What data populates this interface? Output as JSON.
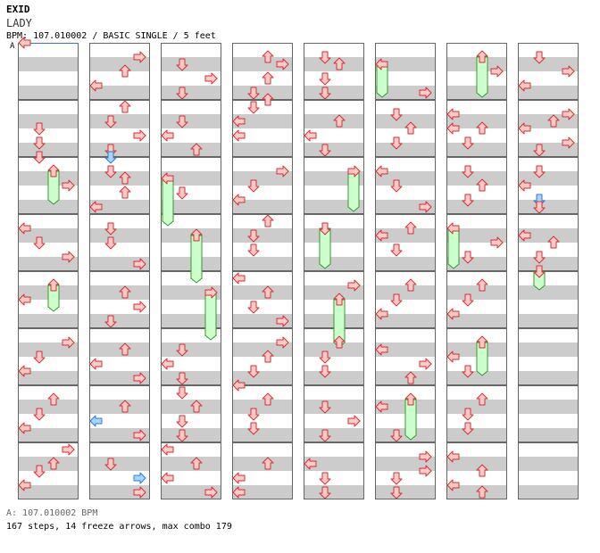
{
  "header": {
    "artist": "EXID",
    "title": "LADY",
    "meta": "BPM: 107.010002 / BASIC SINGLE / 5 feet",
    "bpm_marker": "A"
  },
  "footer": {
    "bpm_legend": "A: 107.010002 BPM",
    "summary": "167 steps, 14 freeze arrows, max combo 179"
  },
  "colors": {
    "arrow_fill": "#ffc8c8",
    "arrow_stroke": "#cc3333",
    "shock_fill": "#a6d6ff",
    "shock_stroke": "#3377cc",
    "freeze_fill": "#ccffcc",
    "freeze_stroke": "#339933",
    "stripe": "#cccccc",
    "border": "#666666"
  },
  "steps": [
    {
      "c": 0,
      "r": 0,
      "b": 0,
      "d": "L"
    },
    {
      "c": 0,
      "r": 1,
      "b": 4,
      "d": "D"
    },
    {
      "c": 0,
      "r": 1,
      "b": 6,
      "d": "D"
    },
    {
      "c": 0,
      "r": 1,
      "b": 8,
      "d": "D"
    },
    {
      "c": 0,
      "r": 2,
      "b": 2,
      "d": "U",
      "f": 4
    },
    {
      "c": 0,
      "r": 2,
      "b": 4,
      "d": "R"
    },
    {
      "c": 0,
      "r": 3,
      "b": 2,
      "d": "L"
    },
    {
      "c": 0,
      "r": 3,
      "b": 4,
      "d": "D"
    },
    {
      "c": 0,
      "r": 3,
      "b": 6,
      "d": "R"
    },
    {
      "c": 0,
      "r": 4,
      "b": 2,
      "d": "U",
      "f": 3
    },
    {
      "c": 0,
      "r": 4,
      "b": 4,
      "d": "L"
    },
    {
      "c": 0,
      "r": 5,
      "b": 2,
      "d": "R"
    },
    {
      "c": 0,
      "r": 5,
      "b": 4,
      "d": "D"
    },
    {
      "c": 0,
      "r": 5,
      "b": 6,
      "d": "L"
    },
    {
      "c": 0,
      "r": 6,
      "b": 2,
      "d": "U"
    },
    {
      "c": 0,
      "r": 6,
      "b": 4,
      "d": "D"
    },
    {
      "c": 0,
      "r": 6,
      "b": 6,
      "d": "L"
    },
    {
      "c": 0,
      "r": 7,
      "b": 1,
      "d": "R"
    },
    {
      "c": 0,
      "r": 7,
      "b": 3,
      "d": "U"
    },
    {
      "c": 0,
      "r": 7,
      "b": 4,
      "d": "D"
    },
    {
      "c": 0,
      "r": 7,
      "b": 6,
      "d": "L"
    },
    {
      "c": 1,
      "r": 0,
      "b": 2,
      "d": "R"
    },
    {
      "c": 1,
      "r": 0,
      "b": 4,
      "d": "U"
    },
    {
      "c": 1,
      "r": 0,
      "b": 6,
      "d": "L"
    },
    {
      "c": 1,
      "r": 1,
      "b": 1,
      "d": "U"
    },
    {
      "c": 1,
      "r": 1,
      "b": 3,
      "d": "D"
    },
    {
      "c": 1,
      "r": 1,
      "b": 5,
      "d": "R"
    },
    {
      "c": 1,
      "r": 1,
      "b": 7,
      "d": "D"
    },
    {
      "c": 1,
      "r": 1,
      "b": 8,
      "d": "D",
      "s": 1
    },
    {
      "c": 1,
      "r": 2,
      "b": 2,
      "d": "D"
    },
    {
      "c": 1,
      "r": 2,
      "b": 3,
      "d": "U"
    },
    {
      "c": 1,
      "r": 2,
      "b": 5,
      "d": "U"
    },
    {
      "c": 1,
      "r": 2,
      "b": 7,
      "d": "L"
    },
    {
      "c": 1,
      "r": 3,
      "b": 2,
      "d": "D"
    },
    {
      "c": 1,
      "r": 3,
      "b": 4,
      "d": "D"
    },
    {
      "c": 1,
      "r": 3,
      "b": 7,
      "d": "R"
    },
    {
      "c": 1,
      "r": 4,
      "b": 3,
      "d": "U"
    },
    {
      "c": 1,
      "r": 4,
      "b": 5,
      "d": "R"
    },
    {
      "c": 1,
      "r": 4,
      "b": 7,
      "d": "D"
    },
    {
      "c": 1,
      "r": 5,
      "b": 3,
      "d": "U"
    },
    {
      "c": 1,
      "r": 5,
      "b": 5,
      "d": "L"
    },
    {
      "c": 1,
      "r": 5,
      "b": 7,
      "d": "R"
    },
    {
      "c": 1,
      "r": 6,
      "b": 3,
      "d": "U"
    },
    {
      "c": 1,
      "r": 6,
      "b": 5,
      "d": "L",
      "s": 1
    },
    {
      "c": 1,
      "r": 6,
      "b": 7,
      "d": "R"
    },
    {
      "c": 1,
      "r": 7,
      "b": 3,
      "d": "D"
    },
    {
      "c": 1,
      "r": 7,
      "b": 5,
      "d": "R",
      "s": 1
    },
    {
      "c": 1,
      "r": 7,
      "b": 7,
      "d": "R"
    },
    {
      "c": 2,
      "r": 0,
      "b": 3,
      "d": "D"
    },
    {
      "c": 2,
      "r": 0,
      "b": 5,
      "d": "R"
    },
    {
      "c": 2,
      "r": 0,
      "b": 7,
      "d": "D"
    },
    {
      "c": 2,
      "r": 1,
      "b": 3,
      "d": "D"
    },
    {
      "c": 2,
      "r": 1,
      "b": 5,
      "d": "L"
    },
    {
      "c": 2,
      "r": 1,
      "b": 7,
      "d": "U"
    },
    {
      "c": 2,
      "r": 2,
      "b": 3,
      "d": "L",
      "f": 6
    },
    {
      "c": 2,
      "r": 2,
      "b": 5,
      "d": "D"
    },
    {
      "c": 2,
      "r": 3,
      "b": 3,
      "d": "U",
      "f": 6
    },
    {
      "c": 2,
      "r": 4,
      "b": 3,
      "d": "R",
      "f": 6
    },
    {
      "c": 2,
      "r": 5,
      "b": 3,
      "d": "D"
    },
    {
      "c": 2,
      "r": 5,
      "b": 5,
      "d": "L"
    },
    {
      "c": 2,
      "r": 5,
      "b": 7,
      "d": "D"
    },
    {
      "c": 2,
      "r": 6,
      "b": 1,
      "d": "D"
    },
    {
      "c": 2,
      "r": 6,
      "b": 3,
      "d": "U"
    },
    {
      "c": 2,
      "r": 6,
      "b": 5,
      "d": "D"
    },
    {
      "c": 2,
      "r": 6,
      "b": 7,
      "d": "D"
    },
    {
      "c": 2,
      "r": 7,
      "b": 1,
      "d": "L"
    },
    {
      "c": 2,
      "r": 7,
      "b": 3,
      "d": "U"
    },
    {
      "c": 2,
      "r": 7,
      "b": 5,
      "d": "L"
    },
    {
      "c": 2,
      "r": 7,
      "b": 7,
      "d": "R"
    },
    {
      "c": 3,
      "r": 0,
      "b": 2,
      "d": "U"
    },
    {
      "c": 3,
      "r": 0,
      "b": 3,
      "d": "R"
    },
    {
      "c": 3,
      "r": 0,
      "b": 5,
      "d": "U"
    },
    {
      "c": 3,
      "r": 0,
      "b": 7,
      "d": "D"
    },
    {
      "c": 3,
      "r": 0,
      "b": 8,
      "d": "U"
    },
    {
      "c": 3,
      "r": 1,
      "b": 1,
      "d": "D"
    },
    {
      "c": 3,
      "r": 1,
      "b": 3,
      "d": "L"
    },
    {
      "c": 3,
      "r": 1,
      "b": 5,
      "d": "L"
    },
    {
      "c": 3,
      "r": 2,
      "b": 2,
      "d": "R"
    },
    {
      "c": 3,
      "r": 2,
      "b": 4,
      "d": "D"
    },
    {
      "c": 3,
      "r": 2,
      "b": 6,
      "d": "L"
    },
    {
      "c": 3,
      "r": 3,
      "b": 1,
      "d": "U"
    },
    {
      "c": 3,
      "r": 3,
      "b": 3,
      "d": "D"
    },
    {
      "c": 3,
      "r": 3,
      "b": 5,
      "d": "D"
    },
    {
      "c": 3,
      "r": 4,
      "b": 1,
      "d": "L"
    },
    {
      "c": 3,
      "r": 4,
      "b": 3,
      "d": "U"
    },
    {
      "c": 3,
      "r": 4,
      "b": 5,
      "d": "D"
    },
    {
      "c": 3,
      "r": 4,
      "b": 7,
      "d": "R"
    },
    {
      "c": 3,
      "r": 5,
      "b": 2,
      "d": "R"
    },
    {
      "c": 3,
      "r": 5,
      "b": 4,
      "d": "U"
    },
    {
      "c": 3,
      "r": 5,
      "b": 6,
      "d": "D"
    },
    {
      "c": 3,
      "r": 5,
      "b": 8,
      "d": "L"
    },
    {
      "c": 3,
      "r": 6,
      "b": 2,
      "d": "U"
    },
    {
      "c": 3,
      "r": 6,
      "b": 4,
      "d": "D"
    },
    {
      "c": 3,
      "r": 6,
      "b": 6,
      "d": "D"
    },
    {
      "c": 3,
      "r": 7,
      "b": 3,
      "d": "U"
    },
    {
      "c": 3,
      "r": 7,
      "b": 5,
      "d": "L"
    },
    {
      "c": 3,
      "r": 7,
      "b": 7,
      "d": "L"
    },
    {
      "c": 4,
      "r": 0,
      "b": 2,
      "d": "D"
    },
    {
      "c": 4,
      "r": 0,
      "b": 3,
      "d": "U"
    },
    {
      "c": 4,
      "r": 0,
      "b": 5,
      "d": "D"
    },
    {
      "c": 4,
      "r": 0,
      "b": 7,
      "d": "D"
    },
    {
      "c": 4,
      "r": 1,
      "b": 3,
      "d": "U"
    },
    {
      "c": 4,
      "r": 1,
      "b": 5,
      "d": "L"
    },
    {
      "c": 4,
      "r": 1,
      "b": 7,
      "d": "D"
    },
    {
      "c": 4,
      "r": 2,
      "b": 2,
      "d": "R",
      "f": 5
    },
    {
      "c": 4,
      "r": 3,
      "b": 2,
      "d": "D",
      "f": 5
    },
    {
      "c": 4,
      "r": 4,
      "b": 2,
      "d": "R"
    },
    {
      "c": 4,
      "r": 4,
      "b": 4,
      "d": "U",
      "f": 6
    },
    {
      "c": 4,
      "r": 5,
      "b": 2,
      "d": "U"
    },
    {
      "c": 4,
      "r": 5,
      "b": 4,
      "d": "D"
    },
    {
      "c": 4,
      "r": 5,
      "b": 6,
      "d": "D"
    },
    {
      "c": 4,
      "r": 6,
      "b": 3,
      "d": "D"
    },
    {
      "c": 4,
      "r": 6,
      "b": 5,
      "d": "R"
    },
    {
      "c": 4,
      "r": 6,
      "b": 7,
      "d": "D"
    },
    {
      "c": 4,
      "r": 7,
      "b": 3,
      "d": "L"
    },
    {
      "c": 4,
      "r": 7,
      "b": 5,
      "d": "D"
    },
    {
      "c": 4,
      "r": 7,
      "b": 7,
      "d": "D"
    },
    {
      "c": 5,
      "r": 0,
      "b": 3,
      "d": "L",
      "f": 4
    },
    {
      "c": 5,
      "r": 0,
      "b": 7,
      "d": "R"
    },
    {
      "c": 5,
      "r": 1,
      "b": 2,
      "d": "D"
    },
    {
      "c": 5,
      "r": 1,
      "b": 4,
      "d": "U"
    },
    {
      "c": 5,
      "r": 1,
      "b": 6,
      "d": "D"
    },
    {
      "c": 5,
      "r": 2,
      "b": 2,
      "d": "L"
    },
    {
      "c": 5,
      "r": 2,
      "b": 4,
      "d": "D"
    },
    {
      "c": 5,
      "r": 2,
      "b": 7,
      "d": "R"
    },
    {
      "c": 5,
      "r": 3,
      "b": 3,
      "d": "L"
    },
    {
      "c": 5,
      "r": 3,
      "b": 5,
      "d": "D"
    },
    {
      "c": 5,
      "r": 3,
      "b": 2,
      "d": "U"
    },
    {
      "c": 5,
      "r": 4,
      "b": 2,
      "d": "U"
    },
    {
      "c": 5,
      "r": 4,
      "b": 4,
      "d": "D"
    },
    {
      "c": 5,
      "r": 4,
      "b": 6,
      "d": "L"
    },
    {
      "c": 5,
      "r": 5,
      "b": 3,
      "d": "L"
    },
    {
      "c": 5,
      "r": 5,
      "b": 5,
      "d": "R"
    },
    {
      "c": 5,
      "r": 5,
      "b": 7,
      "d": "U"
    },
    {
      "c": 5,
      "r": 6,
      "b": 3,
      "d": "L"
    },
    {
      "c": 5,
      "r": 6,
      "b": 2,
      "d": "U",
      "f": 5
    },
    {
      "c": 5,
      "r": 6,
      "b": 7,
      "d": "D"
    },
    {
      "c": 5,
      "r": 7,
      "b": 2,
      "d": "R"
    },
    {
      "c": 5,
      "r": 7,
      "b": 4,
      "d": "R"
    },
    {
      "c": 5,
      "r": 7,
      "b": 5,
      "d": "D"
    },
    {
      "c": 5,
      "r": 7,
      "b": 7,
      "d": "D"
    },
    {
      "c": 6,
      "r": 0,
      "b": 2,
      "d": "U",
      "f": 5
    },
    {
      "c": 6,
      "r": 0,
      "b": 4,
      "d": "R"
    },
    {
      "c": 6,
      "r": 1,
      "b": 2,
      "d": "L"
    },
    {
      "c": 6,
      "r": 1,
      "b": 4,
      "d": "L"
    },
    {
      "c": 6,
      "r": 1,
      "b": 4,
      "d": "U"
    },
    {
      "c": 6,
      "r": 1,
      "b": 6,
      "d": "D"
    },
    {
      "c": 6,
      "r": 2,
      "b": 2,
      "d": "D"
    },
    {
      "c": 6,
      "r": 2,
      "b": 4,
      "d": "U"
    },
    {
      "c": 6,
      "r": 2,
      "b": 6,
      "d": "D"
    },
    {
      "c": 6,
      "r": 3,
      "b": 2,
      "d": "L",
      "f": 5
    },
    {
      "c": 6,
      "r": 3,
      "b": 4,
      "d": "R"
    },
    {
      "c": 6,
      "r": 3,
      "b": 6,
      "d": "D"
    },
    {
      "c": 6,
      "r": 4,
      "b": 2,
      "d": "U"
    },
    {
      "c": 6,
      "r": 4,
      "b": 4,
      "d": "D"
    },
    {
      "c": 6,
      "r": 4,
      "b": 6,
      "d": "L"
    },
    {
      "c": 6,
      "r": 5,
      "b": 2,
      "d": "U",
      "f": 4
    },
    {
      "c": 6,
      "r": 5,
      "b": 4,
      "d": "L"
    },
    {
      "c": 6,
      "r": 5,
      "b": 6,
      "d": "D"
    },
    {
      "c": 6,
      "r": 6,
      "b": 2,
      "d": "U"
    },
    {
      "c": 6,
      "r": 6,
      "b": 4,
      "d": "D"
    },
    {
      "c": 6,
      "r": 6,
      "b": 6,
      "d": "D"
    },
    {
      "c": 6,
      "r": 7,
      "b": 2,
      "d": "L"
    },
    {
      "c": 6,
      "r": 7,
      "b": 4,
      "d": "U"
    },
    {
      "c": 6,
      "r": 7,
      "b": 6,
      "d": "L"
    },
    {
      "c": 6,
      "r": 7,
      "b": 7,
      "d": "U"
    },
    {
      "c": 7,
      "r": 0,
      "b": 2,
      "d": "D"
    },
    {
      "c": 7,
      "r": 0,
      "b": 4,
      "d": "R"
    },
    {
      "c": 7,
      "r": 0,
      "b": 6,
      "d": "L"
    },
    {
      "c": 7,
      "r": 1,
      "b": 2,
      "d": "R"
    },
    {
      "c": 7,
      "r": 1,
      "b": 3,
      "d": "U"
    },
    {
      "c": 7,
      "r": 1,
      "b": 4,
      "d": "L"
    },
    {
      "c": 7,
      "r": 1,
      "b": 6,
      "d": "R"
    },
    {
      "c": 7,
      "r": 1,
      "b": 7,
      "d": "D"
    },
    {
      "c": 7,
      "r": 2,
      "b": 2,
      "d": "D"
    },
    {
      "c": 7,
      "r": 2,
      "b": 4,
      "d": "L"
    },
    {
      "c": 7,
      "r": 2,
      "b": 6,
      "d": "D",
      "s": 1
    },
    {
      "c": 7,
      "r": 2,
      "b": 7,
      "d": "D"
    },
    {
      "c": 7,
      "r": 3,
      "b": 3,
      "d": "L"
    },
    {
      "c": 7,
      "r": 3,
      "b": 4,
      "d": "U"
    },
    {
      "c": 7,
      "r": 3,
      "b": 6,
      "d": "D"
    },
    {
      "c": 7,
      "r": 4,
      "b": 0,
      "d": "D",
      "f": 2
    }
  ]
}
